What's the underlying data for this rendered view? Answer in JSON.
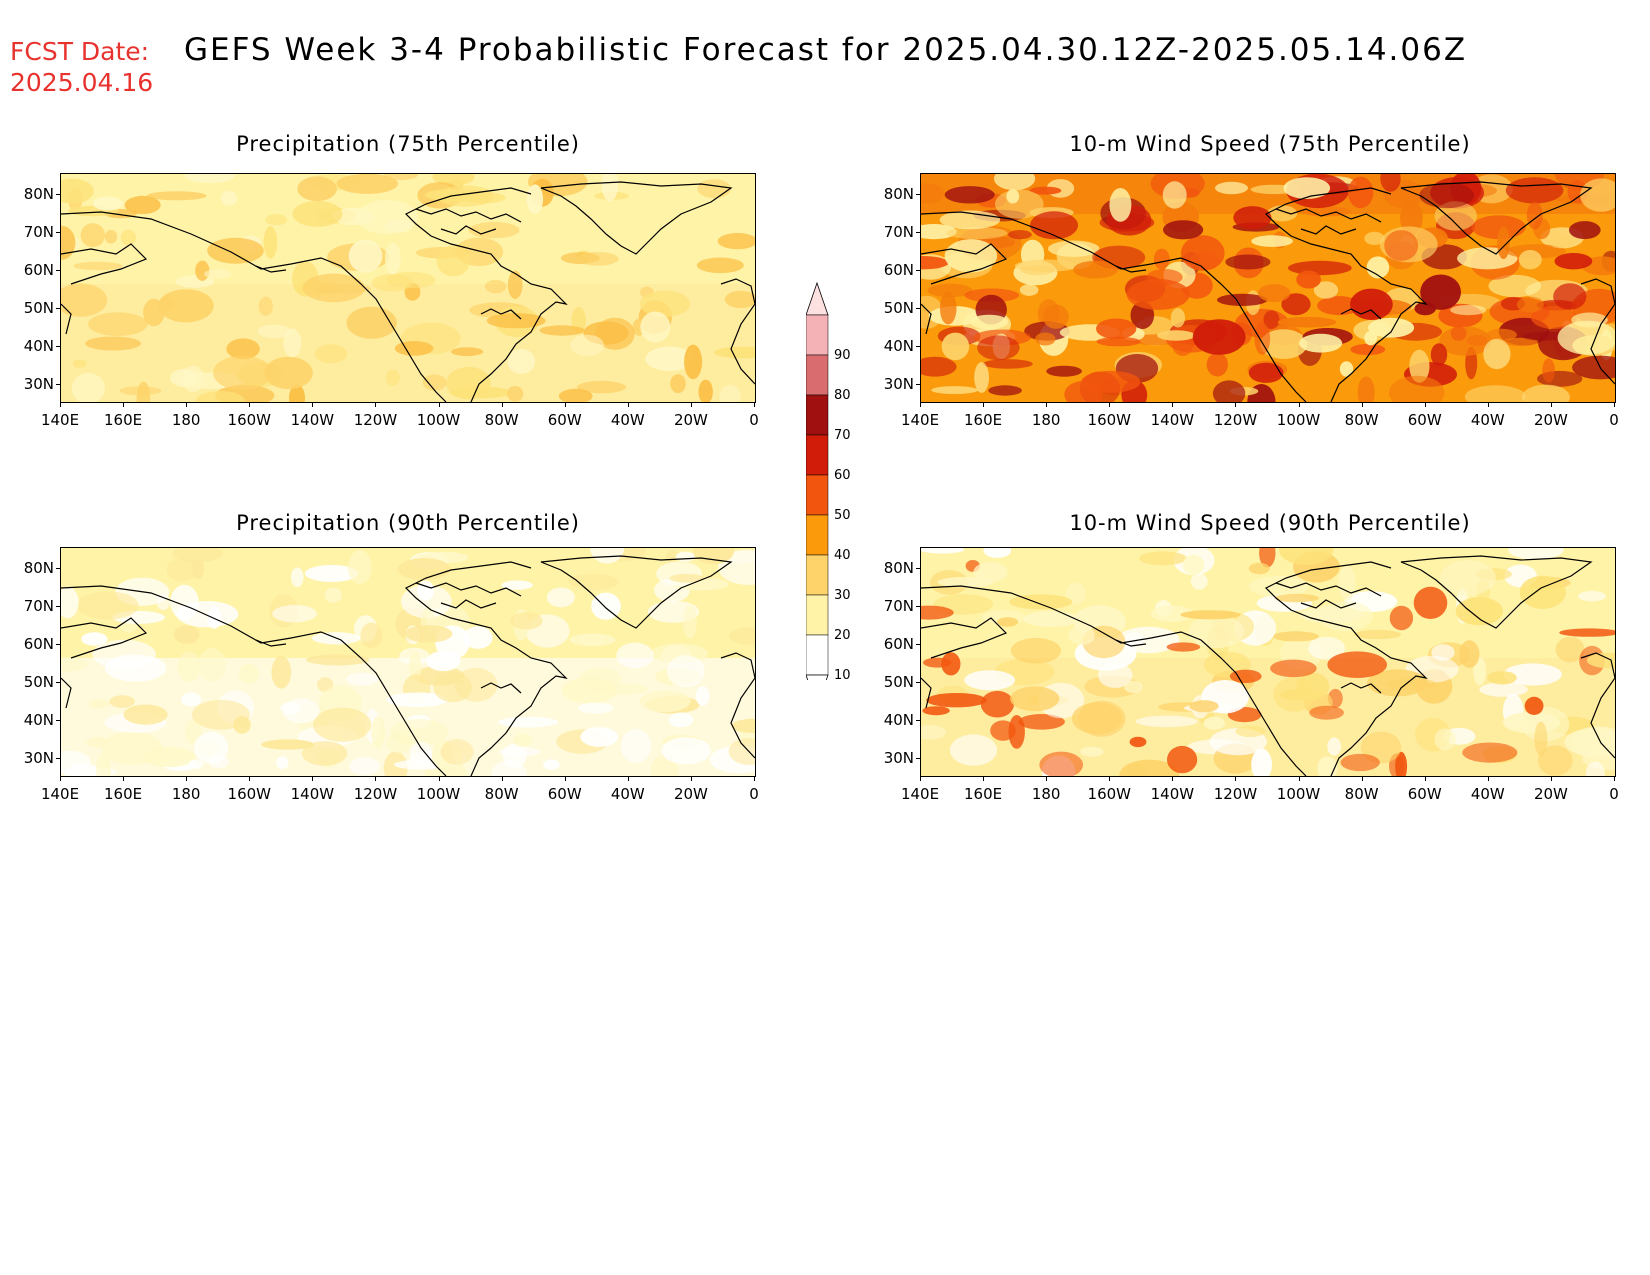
{
  "header": {
    "fcst_label": "FCST Date:",
    "fcst_date": "2025.04.16",
    "title": "GEFS Week 3-4 Probabilistic Forecast for 2025.04.30.12Z-2025.05.14.06Z"
  },
  "axes": {
    "lat_labels": [
      "80N",
      "70N",
      "60N",
      "50N",
      "40N",
      "30N"
    ],
    "lon_labels": [
      "140E",
      "160E",
      "180",
      "160W",
      "140W",
      "120W",
      "100W",
      "80W",
      "60W",
      "40W",
      "20W",
      "0"
    ]
  },
  "panels": [
    {
      "title": "Precipitation (75th Percentile)",
      "intensity": "low"
    },
    {
      "title": "10-m Wind Speed (75th Percentile)",
      "intensity": "high"
    },
    {
      "title": "Precipitation (90th Percentile)",
      "intensity": "verylow"
    },
    {
      "title": "10-m Wind Speed (90th Percentile)",
      "intensity": "low2"
    }
  ],
  "colorbar": {
    "labels": [
      "90",
      "80",
      "70",
      "60",
      "50",
      "40",
      "30",
      "20",
      "10"
    ],
    "colors": [
      "#f4b2b6",
      "#d86c6e",
      "#a01010",
      "#d11c0a",
      "#f2560e",
      "#fb9a0a",
      "#fdd36a",
      "#fff3a8",
      "#ffffff"
    ]
  },
  "chart_data": [
    {
      "type": "heatmap",
      "title": "Precipitation (75th Percentile)",
      "ylabels": [
        "80N",
        "70N",
        "60N",
        "50N",
        "40N",
        "30N"
      ],
      "xlabels": [
        "140E",
        "160E",
        "180",
        "160W",
        "140W",
        "120W",
        "100W",
        "80W",
        "60W",
        "40W",
        "20W",
        "0"
      ],
      "dominant_range": "10-30",
      "legend": "center colorbar"
    },
    {
      "type": "heatmap",
      "title": "10-m Wind Speed (75th Percentile)",
      "ylabels": [
        "80N",
        "70N",
        "60N",
        "50N",
        "40N",
        "30N"
      ],
      "xlabels": [
        "140E",
        "160E",
        "180",
        "160W",
        "140W",
        "120W",
        "100W",
        "80W",
        "60W",
        "40W",
        "20W",
        "0"
      ],
      "dominant_range": "30-60"
    },
    {
      "type": "heatmap",
      "title": "Precipitation (90th Percentile)",
      "ylabels": [
        "80N",
        "70N",
        "60N",
        "50N",
        "40N",
        "30N"
      ],
      "xlabels": [
        "140E",
        "160E",
        "180",
        "160W",
        "140W",
        "120W",
        "100W",
        "80W",
        "60W",
        "40W",
        "20W",
        "0"
      ],
      "dominant_range": "0-20"
    },
    {
      "type": "heatmap",
      "title": "10-m Wind Speed (90th Percentile)",
      "ylabels": [
        "80N",
        "70N",
        "60N",
        "50N",
        "40N",
        "30N"
      ],
      "xlabels": [
        "140E",
        "160E",
        "180",
        "160W",
        "140W",
        "120W",
        "100W",
        "80W",
        "60W",
        "40W",
        "20W",
        "0"
      ],
      "dominant_range": "10-30"
    }
  ]
}
